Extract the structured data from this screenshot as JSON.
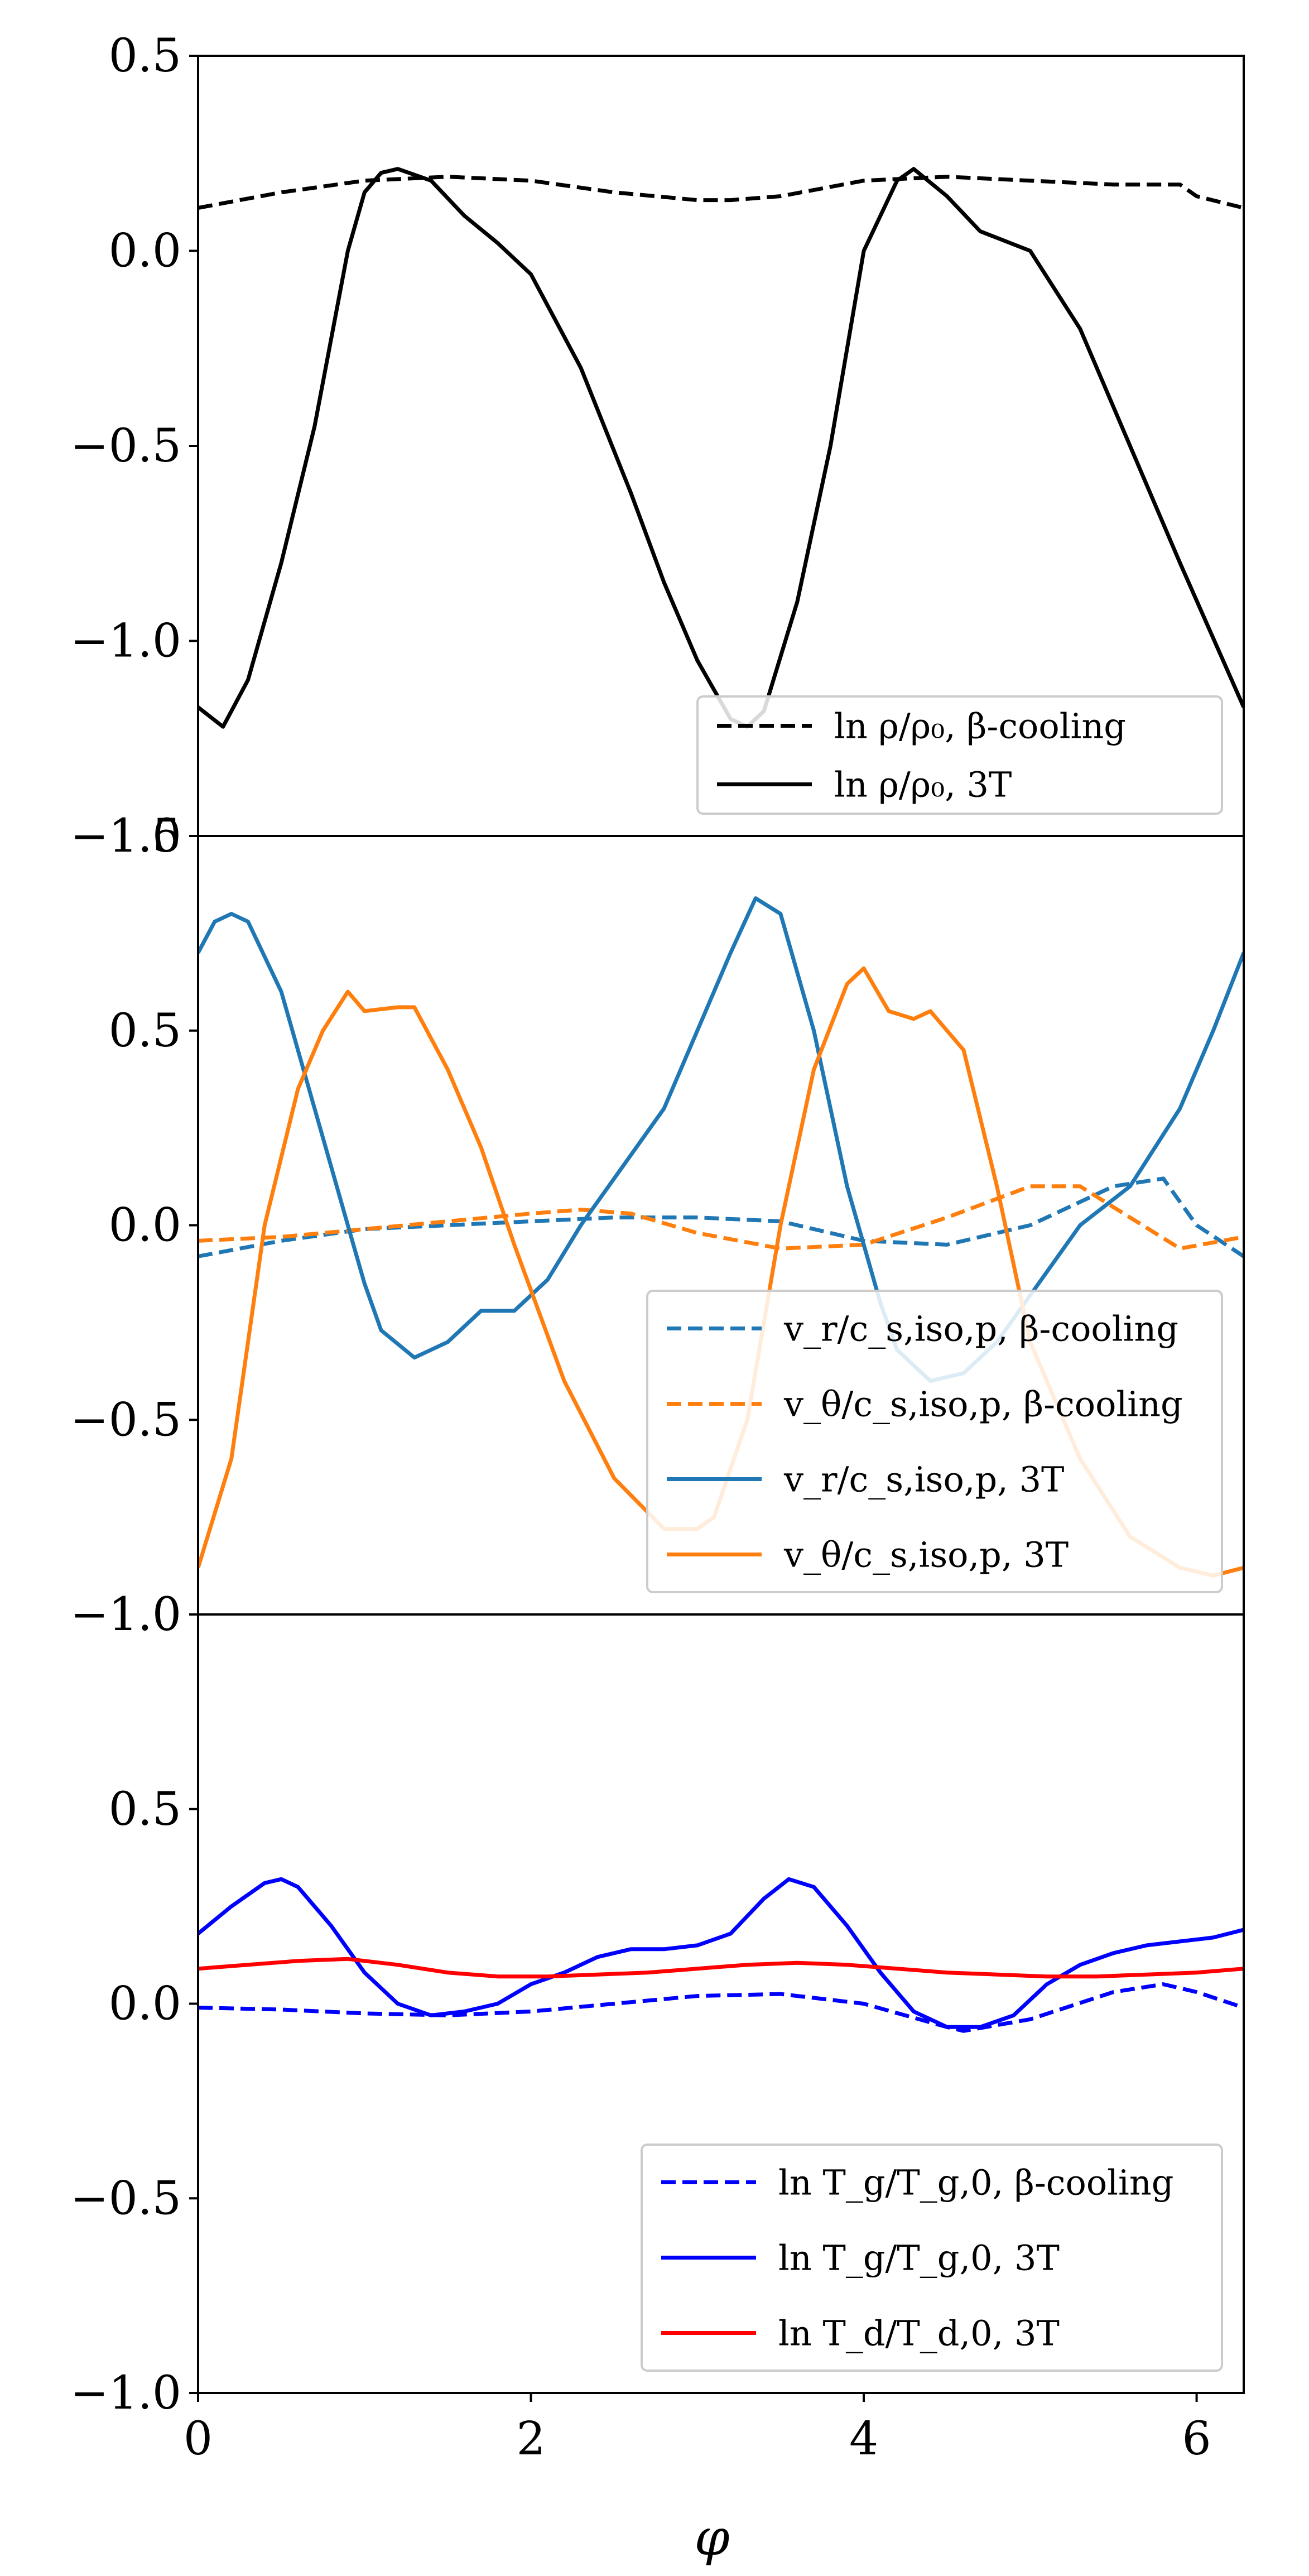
{
  "figure": {
    "xlabel": "φ"
  },
  "chart_data": [
    {
      "type": "line",
      "title": "",
      "xlim": [
        0,
        6.283
      ],
      "ylim": [
        -1.5,
        0.5
      ],
      "y_ticks": [
        0.5,
        0.0,
        -0.5,
        -1.0,
        -1.5
      ],
      "y_tick_labels": [
        "0.5",
        "0.0",
        "−0.5",
        "−1.0",
        "−1.5"
      ],
      "legend_position": "lower-right",
      "series": [
        {
          "name": "ln ρ/ρ₀, β-cooling",
          "color": "#000000",
          "dash": "dashed",
          "x": [
            0,
            0.5,
            1.0,
            1.5,
            2.0,
            2.5,
            3.0,
            3.2,
            3.5,
            4.0,
            4.5,
            5.0,
            5.5,
            5.9,
            6.0,
            6.283
          ],
          "y": [
            0.11,
            0.15,
            0.18,
            0.19,
            0.18,
            0.15,
            0.13,
            0.13,
            0.14,
            0.18,
            0.19,
            0.18,
            0.17,
            0.17,
            0.14,
            0.11
          ]
        },
        {
          "name": "ln ρ/ρ₀, 3T",
          "color": "#000000",
          "dash": "solid",
          "x": [
            0,
            0.15,
            0.3,
            0.5,
            0.7,
            0.9,
            1.0,
            1.1,
            1.2,
            1.4,
            1.6,
            1.8,
            2.0,
            2.3,
            2.6,
            2.8,
            3.0,
            3.2,
            3.3,
            3.4,
            3.6,
            3.8,
            4.0,
            4.2,
            4.3,
            4.5,
            4.7,
            5.0,
            5.3,
            5.6,
            5.9,
            6.283
          ],
          "y": [
            -1.17,
            -1.22,
            -1.1,
            -0.8,
            -0.45,
            0.0,
            0.15,
            0.2,
            0.21,
            0.18,
            0.09,
            0.02,
            -0.06,
            -0.3,
            -0.62,
            -0.85,
            -1.05,
            -1.2,
            -1.22,
            -1.18,
            -0.9,
            -0.5,
            0.0,
            0.18,
            0.21,
            0.14,
            0.05,
            0.0,
            -0.2,
            -0.5,
            -0.8,
            -1.17
          ]
        }
      ]
    },
    {
      "type": "line",
      "title": "",
      "xlim": [
        0,
        6.283
      ],
      "ylim": [
        -1.0,
        1.0
      ],
      "y_ticks": [
        1.0,
        0.5,
        0.0,
        -0.5,
        -1.0
      ],
      "y_tick_labels": [
        "1.0",
        "0.5",
        "0.0",
        "−0.5",
        "−1.0"
      ],
      "legend_position": "lower-right",
      "series": [
        {
          "name": "v_r/c_s,iso,p, β-cooling",
          "color": "#1f77b4",
          "dash": "dashed",
          "x": [
            0,
            0.5,
            1.0,
            1.5,
            2.0,
            2.5,
            3.0,
            3.5,
            4.0,
            4.5,
            5.0,
            5.5,
            5.8,
            6.0,
            6.283
          ],
          "y": [
            -0.08,
            -0.04,
            -0.01,
            0.0,
            0.01,
            0.02,
            0.02,
            0.01,
            -0.04,
            -0.05,
            0.0,
            0.1,
            0.12,
            0.0,
            -0.08
          ]
        },
        {
          "name": "v_θ/c_s,iso,p, β-cooling",
          "color": "#ff7f0e",
          "dash": "dashed",
          "x": [
            0,
            0.5,
            1.0,
            1.5,
            2.0,
            2.3,
            2.6,
            3.0,
            3.5,
            4.0,
            4.5,
            5.0,
            5.3,
            5.6,
            5.9,
            6.283
          ],
          "y": [
            -0.04,
            -0.03,
            -0.01,
            0.01,
            0.03,
            0.04,
            0.03,
            -0.02,
            -0.06,
            -0.05,
            0.02,
            0.1,
            0.1,
            0.02,
            -0.06,
            -0.03
          ]
        },
        {
          "name": "v_r/c_s,iso,p, 3T",
          "color": "#1f77b4",
          "dash": "solid",
          "x": [
            0,
            0.1,
            0.2,
            0.3,
            0.5,
            0.7,
            0.9,
            1.0,
            1.1,
            1.3,
            1.5,
            1.7,
            1.9,
            2.1,
            2.3,
            2.5,
            2.8,
            3.0,
            3.2,
            3.35,
            3.5,
            3.7,
            3.9,
            4.1,
            4.2,
            4.4,
            4.6,
            4.8,
            5.0,
            5.3,
            5.6,
            5.9,
            6.1,
            6.283
          ],
          "y": [
            0.7,
            0.78,
            0.8,
            0.78,
            0.6,
            0.3,
            0.0,
            -0.15,
            -0.27,
            -0.34,
            -0.3,
            -0.22,
            -0.22,
            -0.14,
            0.0,
            0.12,
            0.3,
            0.5,
            0.7,
            0.84,
            0.8,
            0.5,
            0.1,
            -0.2,
            -0.32,
            -0.4,
            -0.38,
            -0.3,
            -0.18,
            0.0,
            0.1,
            0.3,
            0.5,
            0.7
          ]
        },
        {
          "name": "v_θ/c_s,iso,p, 3T",
          "color": "#ff7f0e",
          "dash": "solid",
          "x": [
            0,
            0.2,
            0.4,
            0.6,
            0.75,
            0.9,
            1.0,
            1.2,
            1.3,
            1.5,
            1.7,
            1.9,
            2.2,
            2.5,
            2.8,
            3.0,
            3.1,
            3.3,
            3.5,
            3.7,
            3.9,
            4.0,
            4.15,
            4.3,
            4.4,
            4.6,
            4.8,
            5.0,
            5.3,
            5.6,
            5.9,
            6.1,
            6.283
          ],
          "y": [
            -0.88,
            -0.6,
            0.0,
            0.35,
            0.5,
            0.6,
            0.55,
            0.56,
            0.56,
            0.4,
            0.2,
            -0.05,
            -0.4,
            -0.65,
            -0.78,
            -0.78,
            -0.75,
            -0.5,
            0.0,
            0.4,
            0.62,
            0.66,
            0.55,
            0.53,
            0.55,
            0.45,
            0.1,
            -0.3,
            -0.6,
            -0.8,
            -0.88,
            -0.9,
            -0.88
          ]
        }
      ]
    },
    {
      "type": "line",
      "title": "",
      "xlim": [
        0,
        6.283
      ],
      "ylim": [
        -1.0,
        1.0
      ],
      "x_ticks": [
        0,
        2,
        4,
        6
      ],
      "x_tick_labels": [
        "0",
        "2",
        "4",
        "6"
      ],
      "y_ticks": [
        1.0,
        0.5,
        0.0,
        -0.5,
        -1.0
      ],
      "y_tick_labels": [
        "1.0",
        "0.5",
        "0.0",
        "−0.5",
        "−1.0"
      ],
      "legend_position": "lower-right",
      "series": [
        {
          "name": "ln T_g/T_g,0, β-cooling",
          "color": "#0000ff",
          "dash": "dashed",
          "x": [
            0,
            0.5,
            1.0,
            1.5,
            2.0,
            2.5,
            3.0,
            3.5,
            4.0,
            4.5,
            4.6,
            5.0,
            5.5,
            5.8,
            6.0,
            6.283
          ],
          "y": [
            -0.01,
            -0.015,
            -0.025,
            -0.03,
            -0.02,
            0.0,
            0.02,
            0.025,
            0.0,
            -0.06,
            -0.07,
            -0.04,
            0.03,
            0.05,
            0.03,
            -0.01
          ]
        },
        {
          "name": "ln T_g/T_g,0, 3T",
          "color": "#0000ff",
          "dash": "solid",
          "x": [
            0,
            0.2,
            0.4,
            0.5,
            0.6,
            0.8,
            1.0,
            1.2,
            1.4,
            1.6,
            1.8,
            2.0,
            2.2,
            2.4,
            2.6,
            2.8,
            3.0,
            3.2,
            3.4,
            3.55,
            3.7,
            3.9,
            4.1,
            4.3,
            4.5,
            4.7,
            4.9,
            5.1,
            5.3,
            5.5,
            5.7,
            5.9,
            6.1,
            6.283
          ],
          "y": [
            0.18,
            0.25,
            0.31,
            0.32,
            0.3,
            0.2,
            0.08,
            0.0,
            -0.03,
            -0.02,
            0.0,
            0.05,
            0.08,
            0.12,
            0.14,
            0.14,
            0.15,
            0.18,
            0.27,
            0.32,
            0.3,
            0.2,
            0.08,
            -0.02,
            -0.06,
            -0.06,
            -0.03,
            0.05,
            0.1,
            0.13,
            0.15,
            0.16,
            0.17,
            0.19
          ]
        },
        {
          "name": "ln T_d/T_d,0, 3T",
          "color": "#ff0000",
          "dash": "solid",
          "x": [
            0,
            0.3,
            0.6,
            0.9,
            1.2,
            1.5,
            1.8,
            2.1,
            2.4,
            2.7,
            3.0,
            3.3,
            3.6,
            3.9,
            4.2,
            4.5,
            4.8,
            5.1,
            5.4,
            5.7,
            6.0,
            6.283
          ],
          "y": [
            0.09,
            0.1,
            0.11,
            0.115,
            0.1,
            0.08,
            0.07,
            0.07,
            0.075,
            0.08,
            0.09,
            0.1,
            0.105,
            0.1,
            0.09,
            0.08,
            0.075,
            0.07,
            0.07,
            0.075,
            0.08,
            0.09
          ]
        }
      ]
    }
  ]
}
